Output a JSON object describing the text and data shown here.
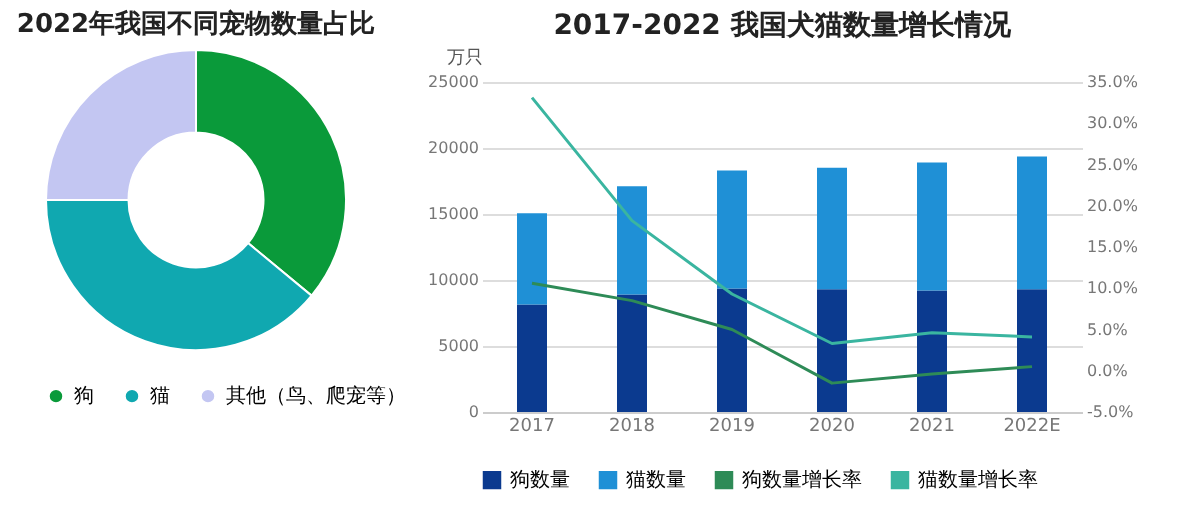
{
  "chart_data": [
    {
      "type": "donut",
      "title": "2022年我国不同宠物数量占比",
      "categories": [
        "狗",
        "猫",
        "其他（鸟、爬宠等）"
      ],
      "values": [
        36,
        39,
        25
      ],
      "colors": [
        "#0a9a3a",
        "#10a8b0",
        "#c3c6f2"
      ],
      "legend": "bottom"
    },
    {
      "type": "bar",
      "stacked": true,
      "title": "2017-2022 我国犬猫数量增长情况",
      "ylabel": "万只",
      "categories": [
        "2017",
        "2018",
        "2019",
        "2020",
        "2021",
        "2022E"
      ],
      "series": [
        {
          "name": "狗数量",
          "color": "#0b3a8f",
          "values": [
            8150,
            8900,
            9350,
            9300,
            9200,
            9300
          ]
        },
        {
          "name": "猫数量",
          "color": "#1f90d6",
          "values": [
            6900,
            8200,
            8950,
            9200,
            9700,
            10050
          ]
        },
        {
          "name": "狗数量增长率",
          "color": "#2e8b57",
          "type": "line",
          "axis": "y2",
          "values": [
            10.6,
            8.5,
            5.0,
            -1.5,
            -0.4,
            0.5
          ]
        },
        {
          "name": "猫数量增长率",
          "color": "#3ab5a0",
          "type": "line",
          "axis": "y2",
          "values": [
            33.1,
            18.2,
            9.3,
            3.3,
            4.6,
            4.1
          ]
        }
      ],
      "ylim": [
        0,
        25000
      ],
      "yticks": [
        0,
        5000,
        10000,
        15000,
        20000,
        25000
      ],
      "y2lim": [
        -5,
        35
      ],
      "y2ticks": [
        {
          "value": -5,
          "label": "-5.0%"
        },
        {
          "value": 0,
          "label": "0.0%"
        },
        {
          "value": 5,
          "label": "5.0%"
        },
        {
          "value": 10,
          "label": "10.0%"
        },
        {
          "value": 15,
          "label": "15.0%"
        },
        {
          "value": 20,
          "label": "20.0%"
        },
        {
          "value": 25,
          "label": "25.0%"
        },
        {
          "value": 30,
          "label": "30.0%"
        },
        {
          "value": 35,
          "label": "35.0%"
        }
      ],
      "grid": "y",
      "legend": "bottom"
    }
  ]
}
